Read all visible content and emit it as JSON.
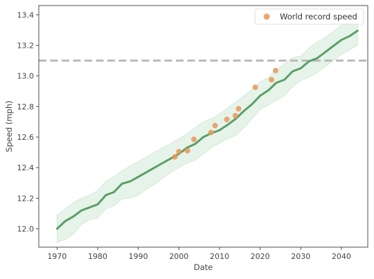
{
  "chart_data": {
    "type": "line",
    "xlabel": "Date",
    "ylabel": "Speed (mph)",
    "xlim": [
      1965.5,
      2046.5
    ],
    "ylim": [
      11.88,
      13.46
    ],
    "xticks": [
      1970,
      1980,
      1990,
      2000,
      2010,
      2020,
      2030,
      2040
    ],
    "yticks": [
      12.0,
      12.2,
      12.4,
      12.6,
      12.8,
      13.0,
      13.2,
      13.4
    ],
    "grid": false,
    "legend_placement": "top-right",
    "reference_line": {
      "y": 13.1,
      "style": "dashed",
      "color": "#bbbbbb"
    },
    "trend": {
      "color": "#5a9e68",
      "band_fill": "#e6f3e8",
      "band_edge": "#cfe6d4",
      "x": [
        1970,
        1972,
        1974,
        1976,
        1978,
        1980,
        1982,
        1984,
        1986,
        1988,
        1990,
        1992,
        1994,
        1996,
        1998,
        2000,
        2002,
        2004,
        2006,
        2008,
        2010,
        2012,
        2014,
        2016,
        2018,
        2020,
        2022,
        2024,
        2026,
        2028,
        2030,
        2032,
        2034,
        2036,
        2038,
        2040,
        2042,
        2044
      ],
      "y": [
        12.0,
        12.05,
        12.08,
        12.12,
        12.14,
        12.16,
        12.22,
        12.24,
        12.295,
        12.31,
        12.34,
        12.37,
        12.4,
        12.43,
        12.46,
        12.49,
        12.53,
        12.555,
        12.6,
        12.625,
        12.645,
        12.68,
        12.72,
        12.77,
        12.815,
        12.87,
        12.905,
        12.955,
        12.975,
        13.03,
        13.05,
        13.095,
        13.115,
        13.155,
        13.195,
        13.235,
        13.26,
        13.295
      ],
      "lower": [
        11.91,
        11.93,
        11.965,
        12.03,
        12.06,
        12.07,
        12.13,
        12.15,
        12.195,
        12.2,
        12.22,
        12.26,
        12.29,
        12.33,
        12.37,
        12.4,
        12.43,
        12.45,
        12.49,
        12.53,
        12.56,
        12.59,
        12.61,
        12.66,
        12.72,
        12.78,
        12.81,
        12.84,
        12.87,
        12.93,
        12.97,
        12.99,
        13.02,
        13.06,
        13.1,
        13.14,
        13.17,
        13.2
      ],
      "upper": [
        12.09,
        12.13,
        12.17,
        12.2,
        12.22,
        12.25,
        12.31,
        12.34,
        12.38,
        12.41,
        12.44,
        12.47,
        12.5,
        12.53,
        12.56,
        12.59,
        12.62,
        12.66,
        12.7,
        12.72,
        12.75,
        12.79,
        12.83,
        12.87,
        12.91,
        12.96,
        12.99,
        13.04,
        13.08,
        13.12,
        13.13,
        13.18,
        13.22,
        13.25,
        13.29,
        13.33,
        13.36,
        13.39
      ]
    },
    "series": [
      {
        "name": "World record speed",
        "type": "scatter",
        "color": "#e8965a",
        "x": [
          1999.0,
          2000.0,
          2002.1,
          2003.7,
          2007.9,
          2008.9,
          2011.8,
          2013.9,
          2014.7,
          2018.8,
          2022.8,
          2023.8
        ],
        "y": [
          12.47,
          12.505,
          12.51,
          12.585,
          12.63,
          12.675,
          12.715,
          12.74,
          12.785,
          12.925,
          12.975,
          13.035
        ]
      }
    ]
  }
}
